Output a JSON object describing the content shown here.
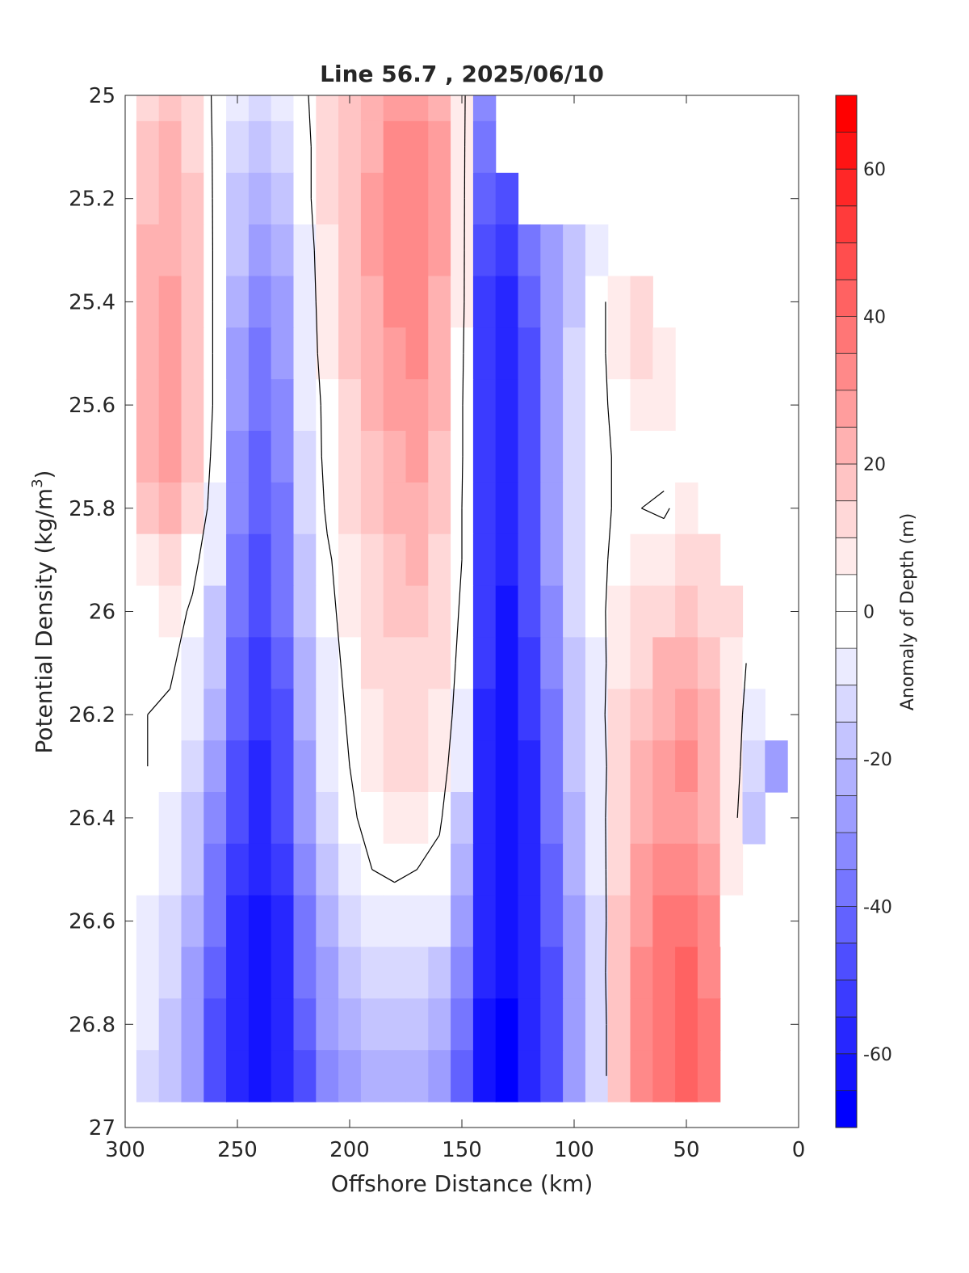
{
  "chart_data": {
    "type": "heatmap",
    "title": "Line 56.7 , 2025/06/10",
    "xlabel": "Offshore Distance (km)",
    "ylabel_prefix": "Potential Density (kg/m",
    "ylabel_superscript": "3",
    "ylabel_suffix": ")",
    "xlim": [
      300,
      0
    ],
    "ylim": [
      25,
      27
    ],
    "x_reversed": true,
    "y_reversed": true,
    "x_ticks": [
      "300",
      "250",
      "200",
      "150",
      "100",
      "50",
      "0"
    ],
    "y_ticks": [
      "25",
      "25.2",
      "25.4",
      "25.6",
      "25.8",
      "26",
      "26.2",
      "26.4",
      "26.6",
      "26.8",
      "27"
    ],
    "colorbar": {
      "label": "Anomaly of Depth (m)",
      "range": [
        -70,
        70
      ],
      "step": 5,
      "ticks": [
        "60",
        "40",
        "20",
        "0",
        "-20",
        "-40",
        "-60"
      ],
      "low_color": "#0000ff",
      "zero_color": "#ffffff",
      "high_color": "#ff0000"
    },
    "x": [
      290,
      280,
      270,
      260,
      250,
      240,
      230,
      220,
      210,
      200,
      190,
      180,
      170,
      160,
      150,
      140,
      130,
      120,
      110,
      100,
      90,
      80,
      70,
      60,
      50,
      40,
      30,
      20,
      10
    ],
    "y": [
      25.0,
      25.1,
      25.2,
      25.3,
      25.4,
      25.5,
      25.6,
      25.7,
      25.8,
      25.9,
      26.0,
      26.1,
      26.2,
      26.3,
      26.4,
      26.5,
      26.6,
      26.7,
      26.8,
      26.9
    ],
    "z": [
      [
        12,
        16,
        10,
        -2,
        -8,
        -12,
        -10,
        -2,
        10,
        16,
        22,
        26,
        28,
        22,
        6,
        -35,
        null,
        null,
        null,
        null,
        null,
        null,
        null,
        null,
        null,
        null,
        null,
        null,
        null
      ],
      [
        16,
        20,
        14,
        -2,
        -12,
        -16,
        -14,
        -4,
        10,
        18,
        24,
        30,
        32,
        26,
        6,
        -40,
        null,
        null,
        null,
        null,
        null,
        null,
        null,
        null,
        null,
        null,
        null,
        null,
        null
      ],
      [
        18,
        22,
        16,
        -2,
        -16,
        -22,
        -18,
        -4,
        10,
        18,
        26,
        30,
        34,
        26,
        6,
        -45,
        -48,
        null,
        null,
        null,
        null,
        null,
        null,
        null,
        null,
        null,
        null,
        null,
        null
      ],
      [
        20,
        24,
        18,
        -2,
        -20,
        -26,
        -22,
        -6,
        8,
        18,
        26,
        30,
        34,
        26,
        6,
        -48,
        -52,
        -40,
        -30,
        -18,
        -6,
        null,
        null,
        null,
        null,
        null,
        null,
        null,
        null
      ],
      [
        20,
        26,
        18,
        -2,
        -24,
        -32,
        -26,
        -8,
        8,
        18,
        24,
        30,
        32,
        24,
        6,
        -52,
        -56,
        -44,
        -30,
        -16,
        -4,
        6,
        10,
        null,
        null,
        null,
        null,
        null,
        null
      ],
      [
        20,
        26,
        18,
        -2,
        -26,
        -36,
        -30,
        -8,
        6,
        16,
        22,
        28,
        30,
        22,
        4,
        -54,
        -58,
        -46,
        -30,
        -14,
        -4,
        6,
        10,
        8,
        null,
        null,
        null,
        null,
        null
      ],
      [
        22,
        28,
        18,
        -2,
        -28,
        -40,
        -32,
        -10,
        4,
        14,
        20,
        26,
        28,
        20,
        2,
        -54,
        -60,
        -48,
        -30,
        -14,
        -4,
        4,
        8,
        6,
        null,
        null,
        null,
        null,
        null
      ],
      [
        20,
        26,
        16,
        -4,
        -32,
        -42,
        -34,
        -12,
        4,
        12,
        18,
        24,
        26,
        18,
        2,
        -54,
        -60,
        -46,
        -30,
        -14,
        -4,
        2,
        2,
        4,
        null,
        null,
        null,
        null,
        null
      ],
      [
        16,
        22,
        12,
        -6,
        -34,
        -44,
        -36,
        -14,
        2,
        10,
        16,
        22,
        24,
        16,
        0,
        -54,
        -60,
        -46,
        -30,
        -12,
        -4,
        2,
        0,
        -2,
        6,
        null,
        null,
        null,
        null
      ],
      [
        8,
        12,
        4,
        -10,
        -36,
        -46,
        -38,
        -16,
        -2,
        8,
        14,
        18,
        20,
        14,
        0,
        -54,
        -60,
        -46,
        -30,
        -12,
        -4,
        4,
        6,
        8,
        12,
        14,
        null,
        null,
        null
      ],
      [
        4,
        6,
        -2,
        -16,
        -40,
        -50,
        -40,
        -20,
        -4,
        6,
        12,
        16,
        16,
        12,
        -2,
        -54,
        -62,
        -50,
        -32,
        -14,
        -4,
        6,
        10,
        14,
        16,
        14,
        10,
        null,
        null
      ],
      [
        2,
        2,
        -6,
        -20,
        -42,
        -52,
        -44,
        -22,
        -6,
        4,
        10,
        14,
        14,
        10,
        -4,
        -54,
        -62,
        -52,
        -34,
        -16,
        -6,
        8,
        14,
        20,
        22,
        16,
        8,
        -4,
        null
      ],
      [
        0,
        -2,
        -10,
        -24,
        -44,
        -54,
        -46,
        -24,
        -8,
        2,
        8,
        12,
        12,
        8,
        -6,
        -56,
        -62,
        -54,
        -36,
        -18,
        -6,
        10,
        18,
        24,
        26,
        20,
        8,
        -8,
        null
      ],
      [
        0,
        -4,
        -12,
        -28,
        -46,
        -56,
        -48,
        -26,
        -10,
        0,
        6,
        10,
        10,
        6,
        -10,
        -58,
        -62,
        -56,
        -38,
        -20,
        -8,
        10,
        20,
        26,
        30,
        22,
        8,
        -12,
        -30
      ],
      [
        -2,
        -6,
        -16,
        -32,
        -50,
        -58,
        -50,
        -30,
        -12,
        -2,
        4,
        8,
        6,
        2,
        -16,
        -58,
        -64,
        -56,
        -40,
        -22,
        -8,
        12,
        22,
        28,
        28,
        22,
        6,
        -16,
        null
      ],
      [
        -4,
        -10,
        -20,
        -36,
        -52,
        -60,
        -52,
        -34,
        -16,
        -6,
        0,
        2,
        0,
        -4,
        -22,
        -58,
        -64,
        -58,
        -42,
        -24,
        -10,
        14,
        26,
        32,
        34,
        26,
        6,
        null,
        null
      ],
      [
        -6,
        -12,
        -24,
        -40,
        -56,
        -62,
        -56,
        -38,
        -22,
        -12,
        -6,
        -6,
        -6,
        -10,
        -28,
        -58,
        -64,
        -58,
        -44,
        -26,
        -12,
        16,
        28,
        36,
        38,
        30,
        4,
        null,
        null
      ],
      [
        -8,
        -14,
        -26,
        -44,
        -58,
        -64,
        -58,
        -40,
        -26,
        -18,
        -14,
        -14,
        -14,
        -18,
        -34,
        -60,
        -64,
        -60,
        -46,
        -28,
        -12,
        18,
        32,
        38,
        40,
        34,
        null,
        null,
        null
      ],
      [
        -10,
        -16,
        -28,
        -46,
        -60,
        -64,
        -60,
        -44,
        -30,
        -24,
        -20,
        -20,
        -20,
        -24,
        -40,
        -62,
        -66,
        -60,
        -46,
        -30,
        -14,
        18,
        32,
        38,
        42,
        36,
        null,
        null,
        null
      ],
      [
        -12,
        -18,
        -30,
        -48,
        -60,
        -64,
        -60,
        -46,
        -32,
        -28,
        -24,
        -24,
        -24,
        -28,
        -44,
        -62,
        -66,
        -60,
        -46,
        -30,
        -14,
        18,
        32,
        38,
        44,
        38,
        null,
        null,
        null
      ]
    ]
  }
}
